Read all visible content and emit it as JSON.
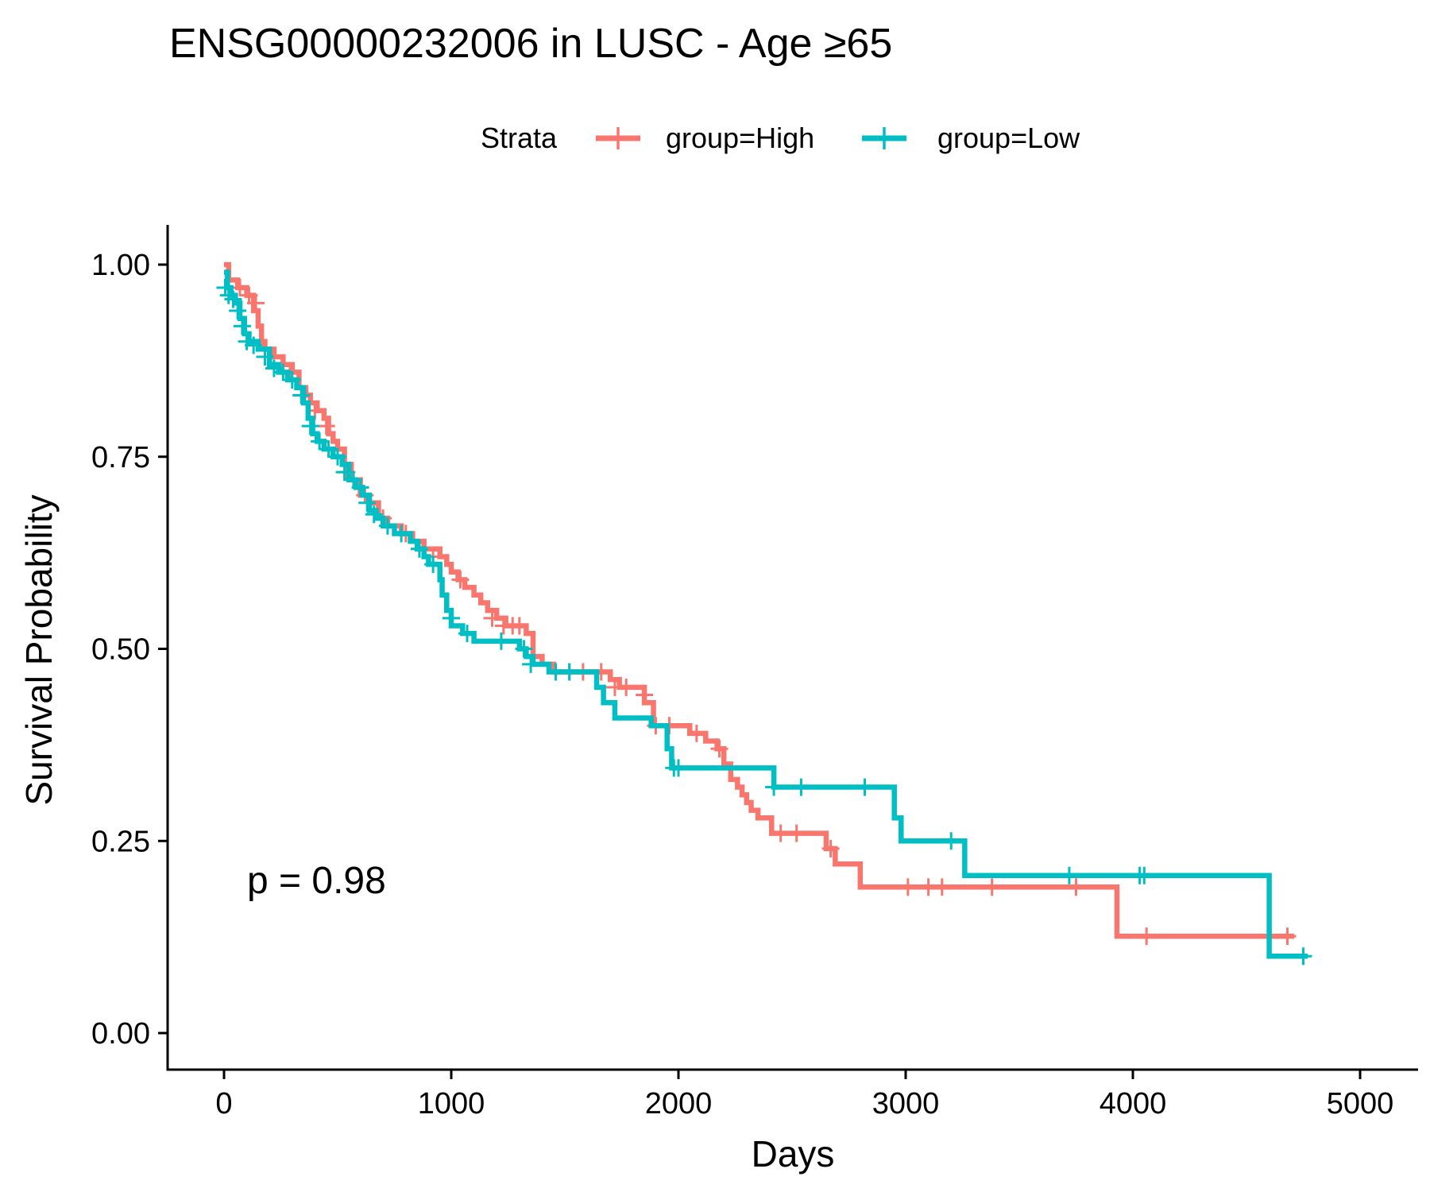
{
  "chart_data": {
    "type": "line",
    "subtype": "kaplan-meier",
    "title": "ENSG00000232006 in LUSC - Age ≥65",
    "xlabel": "Days",
    "ylabel": "Survival Probability",
    "xlim": [
      -250,
      5250
    ],
    "ylim": [
      -0.05,
      1.05
    ],
    "x_ticks": [
      0,
      1000,
      2000,
      3000,
      4000,
      5000
    ],
    "x_tick_labels": [
      "0",
      "1000",
      "2000",
      "3000",
      "4000",
      "5000"
    ],
    "y_ticks": [
      0,
      0.25,
      0.5,
      0.75,
      1.0
    ],
    "y_tick_labels": [
      "0.00",
      "0.25",
      "0.50",
      "0.75",
      "1.00"
    ],
    "grid": false,
    "legend": {
      "title": "Strata",
      "position": "top",
      "entries": [
        "group=High",
        "group=Low"
      ]
    },
    "annotation": "p = 0.98",
    "series": [
      {
        "name": "group=High",
        "color": "#F8766D",
        "steps": [
          [
            0,
            1.0
          ],
          [
            20,
            0.98
          ],
          [
            60,
            0.97
          ],
          [
            100,
            0.96
          ],
          [
            130,
            0.94
          ],
          [
            150,
            0.92
          ],
          [
            165,
            0.9
          ],
          [
            180,
            0.89
          ],
          [
            220,
            0.88
          ],
          [
            260,
            0.87
          ],
          [
            300,
            0.86
          ],
          [
            330,
            0.84
          ],
          [
            360,
            0.83
          ],
          [
            380,
            0.82
          ],
          [
            410,
            0.81
          ],
          [
            440,
            0.8
          ],
          [
            460,
            0.78
          ],
          [
            480,
            0.77
          ],
          [
            500,
            0.76
          ],
          [
            530,
            0.74
          ],
          [
            560,
            0.72
          ],
          [
            600,
            0.7
          ],
          [
            640,
            0.69
          ],
          [
            680,
            0.67
          ],
          [
            720,
            0.66
          ],
          [
            780,
            0.65
          ],
          [
            830,
            0.64
          ],
          [
            880,
            0.63
          ],
          [
            950,
            0.62
          ],
          [
            980,
            0.61
          ],
          [
            1000,
            0.6
          ],
          [
            1030,
            0.59
          ],
          [
            1060,
            0.58
          ],
          [
            1100,
            0.57
          ],
          [
            1130,
            0.56
          ],
          [
            1160,
            0.55
          ],
          [
            1200,
            0.54
          ],
          [
            1240,
            0.53
          ],
          [
            1280,
            0.53
          ],
          [
            1330,
            0.52
          ],
          [
            1360,
            0.49
          ],
          [
            1400,
            0.48
          ],
          [
            1450,
            0.47
          ],
          [
            1700,
            0.46
          ],
          [
            1740,
            0.45
          ],
          [
            1850,
            0.43
          ],
          [
            1890,
            0.4
          ],
          [
            2050,
            0.39
          ],
          [
            2120,
            0.38
          ],
          [
            2170,
            0.37
          ],
          [
            2200,
            0.35
          ],
          [
            2230,
            0.33
          ],
          [
            2260,
            0.32
          ],
          [
            2280,
            0.31
          ],
          [
            2300,
            0.3
          ],
          [
            2320,
            0.29
          ],
          [
            2350,
            0.28
          ],
          [
            2410,
            0.26
          ],
          [
            2650,
            0.24
          ],
          [
            2690,
            0.22
          ],
          [
            2800,
            0.19
          ],
          [
            3930,
            0.126
          ]
        ],
        "end": 4710,
        "censored": [
          [
            70,
            0.97
          ],
          [
            110,
            0.96
          ],
          [
            140,
            0.95
          ],
          [
            260,
            0.87
          ],
          [
            290,
            0.86
          ],
          [
            340,
            0.83
          ],
          [
            400,
            0.81
          ],
          [
            450,
            0.79
          ],
          [
            540,
            0.73
          ],
          [
            620,
            0.7
          ],
          [
            700,
            0.67
          ],
          [
            800,
            0.65
          ],
          [
            860,
            0.63
          ],
          [
            920,
            0.62
          ],
          [
            1040,
            0.59
          ],
          [
            1180,
            0.54
          ],
          [
            1230,
            0.53
          ],
          [
            1270,
            0.53
          ],
          [
            1300,
            0.53
          ],
          [
            1460,
            0.47
          ],
          [
            1520,
            0.47
          ],
          [
            1580,
            0.47
          ],
          [
            1660,
            0.47
          ],
          [
            1720,
            0.45
          ],
          [
            1770,
            0.45
          ],
          [
            1850,
            0.44
          ],
          [
            1900,
            0.4
          ],
          [
            1960,
            0.4
          ],
          [
            2080,
            0.39
          ],
          [
            2180,
            0.37
          ],
          [
            2450,
            0.26
          ],
          [
            2520,
            0.26
          ],
          [
            2670,
            0.24
          ],
          [
            3010,
            0.19
          ],
          [
            3100,
            0.19
          ],
          [
            3160,
            0.19
          ],
          [
            3380,
            0.19
          ],
          [
            3750,
            0.19
          ],
          [
            4060,
            0.126
          ],
          [
            4680,
            0.126
          ]
        ]
      },
      {
        "name": "group=Low",
        "color": "#00BFC4",
        "steps": [
          [
            0,
            0.99
          ],
          [
            15,
            0.97
          ],
          [
            30,
            0.96
          ],
          [
            50,
            0.95
          ],
          [
            70,
            0.93
          ],
          [
            90,
            0.91
          ],
          [
            110,
            0.9
          ],
          [
            150,
            0.89
          ],
          [
            200,
            0.87
          ],
          [
            240,
            0.86
          ],
          [
            280,
            0.85
          ],
          [
            320,
            0.84
          ],
          [
            350,
            0.82
          ],
          [
            370,
            0.8
          ],
          [
            390,
            0.78
          ],
          [
            410,
            0.77
          ],
          [
            440,
            0.76
          ],
          [
            480,
            0.75
          ],
          [
            520,
            0.74
          ],
          [
            550,
            0.72
          ],
          [
            580,
            0.71
          ],
          [
            610,
            0.7
          ],
          [
            640,
            0.68
          ],
          [
            670,
            0.67
          ],
          [
            700,
            0.66
          ],
          [
            750,
            0.65
          ],
          [
            820,
            0.64
          ],
          [
            850,
            0.63
          ],
          [
            880,
            0.62
          ],
          [
            900,
            0.61
          ],
          [
            950,
            0.59
          ],
          [
            960,
            0.57
          ],
          [
            980,
            0.55
          ],
          [
            1000,
            0.53
          ],
          [
            1050,
            0.52
          ],
          [
            1100,
            0.51
          ],
          [
            1300,
            0.5
          ],
          [
            1330,
            0.49
          ],
          [
            1360,
            0.48
          ],
          [
            1430,
            0.47
          ],
          [
            1640,
            0.45
          ],
          [
            1670,
            0.43
          ],
          [
            1720,
            0.41
          ],
          [
            1880,
            0.4
          ],
          [
            1950,
            0.37
          ],
          [
            1970,
            0.345
          ],
          [
            2420,
            0.32
          ],
          [
            2950,
            0.28
          ],
          [
            2980,
            0.25
          ],
          [
            3260,
            0.205
          ],
          [
            4600,
            0.1
          ]
        ],
        "end": 4770,
        "censored": [
          [
            5,
            0.97
          ],
          [
            20,
            0.96
          ],
          [
            40,
            0.955
          ],
          [
            60,
            0.94
          ],
          [
            80,
            0.92
          ],
          [
            100,
            0.9
          ],
          [
            130,
            0.895
          ],
          [
            180,
            0.88
          ],
          [
            220,
            0.865
          ],
          [
            260,
            0.86
          ],
          [
            300,
            0.85
          ],
          [
            340,
            0.83
          ],
          [
            380,
            0.79
          ],
          [
            420,
            0.77
          ],
          [
            460,
            0.76
          ],
          [
            500,
            0.75
          ],
          [
            530,
            0.73
          ],
          [
            570,
            0.72
          ],
          [
            600,
            0.71
          ],
          [
            630,
            0.69
          ],
          [
            660,
            0.675
          ],
          [
            720,
            0.66
          ],
          [
            780,
            0.65
          ],
          [
            860,
            0.63
          ],
          [
            920,
            0.61
          ],
          [
            1000,
            0.54
          ],
          [
            1070,
            0.52
          ],
          [
            1220,
            0.51
          ],
          [
            1320,
            0.5
          ],
          [
            1350,
            0.48
          ],
          [
            1460,
            0.47
          ],
          [
            1520,
            0.47
          ],
          [
            1980,
            0.345
          ],
          [
            2000,
            0.345
          ],
          [
            2420,
            0.32
          ],
          [
            2540,
            0.32
          ],
          [
            2820,
            0.32
          ],
          [
            3200,
            0.25
          ],
          [
            3720,
            0.205
          ],
          [
            4030,
            0.205
          ],
          [
            4050,
            0.205
          ],
          [
            4750,
            0.1
          ]
        ]
      }
    ]
  }
}
